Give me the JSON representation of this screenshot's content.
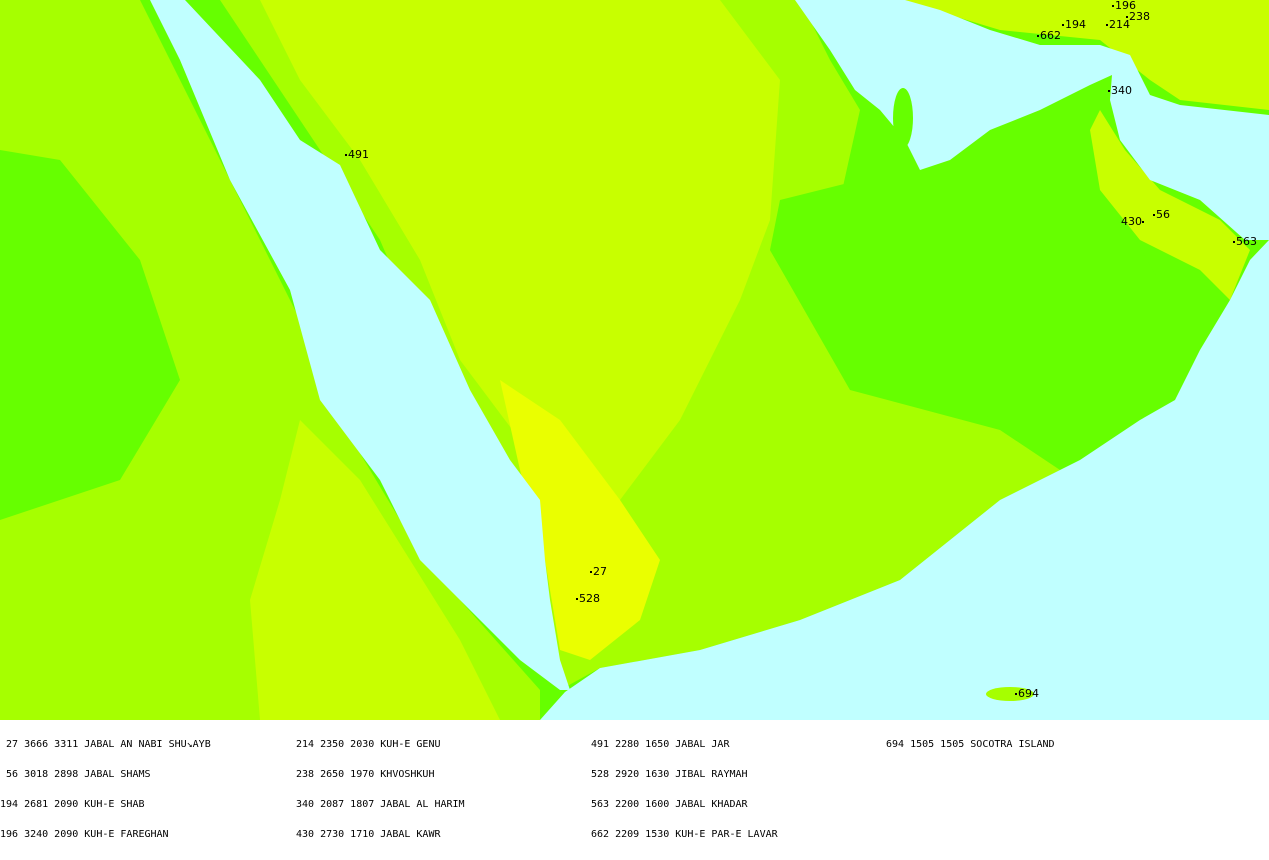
{
  "colors": {
    "sea": "#c0ffff",
    "lowland": "#66ff00",
    "midland": "#a6ff00",
    "upland": "#c8ff00",
    "highland": "#eaff00"
  },
  "peaks": [
    {
      "id": "27",
      "label": "27"
    },
    {
      "id": "56",
      "label": "56"
    },
    {
      "id": "194",
      "label": "194"
    },
    {
      "id": "196",
      "label": "196"
    },
    {
      "id": "214",
      "label": "214"
    },
    {
      "id": "238",
      "label": "238"
    },
    {
      "id": "340",
      "label": "340"
    },
    {
      "id": "430",
      "label": "430"
    },
    {
      "id": "491",
      "label": "491"
    },
    {
      "id": "528",
      "label": "528"
    },
    {
      "id": "563",
      "label": "563"
    },
    {
      "id": "662",
      "label": "662"
    },
    {
      "id": "694",
      "label": "694"
    }
  ],
  "legend": {
    "columns": [
      [
        " 27 3666 3311 JABAL AN NABI SHU↘AYB",
        " 56 3018 2898 JABAL SHAMS",
        "194 2681 2090 KUH-E SHAB",
        "196 3240 2090 KUH-E FAREGHAN"
      ],
      [
        "214 2350 2030 KUH-E GENU",
        "238 2650 1970 KHVOSHKUH",
        "340 2087 1807 JABAL AL HARIM",
        "430 2730 1710 JABAL KAWR"
      ],
      [
        "491 2280 1650 JABAL JAR",
        "528 2920 1630 JIBAL RAYMAH",
        "563 2200 1600 JABAL KHADAR",
        "662 2209 1530 KUH-E PAR-E LAVAR"
      ],
      [
        "694 1505 1505 SOCOTRA ISLAND"
      ]
    ]
  }
}
